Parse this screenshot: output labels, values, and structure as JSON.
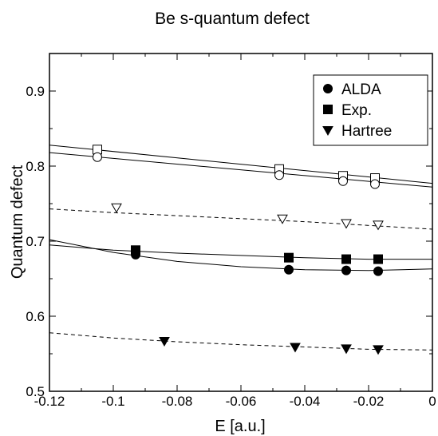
{
  "chart_data": {
    "type": "scatter",
    "title": "Be s-quantum defect",
    "xlabel": "E [a.u.]",
    "ylabel": "Quantum defect",
    "xlim": [
      -0.12,
      0
    ],
    "ylim": [
      0.5,
      0.95
    ],
    "x_ticks": [
      -0.12,
      -0.1,
      -0.08,
      -0.06,
      -0.04,
      -0.02,
      0
    ],
    "x_tick_labels": [
      "-0.12",
      "-0.1",
      "-0.08",
      "-0.06",
      "-0.04",
      "-0.02",
      "0"
    ],
    "y_ticks": [
      0.5,
      0.6,
      0.7,
      0.8,
      0.9
    ],
    "y_tick_labels": [
      "0.5",
      "0.6",
      "0.7",
      "0.8",
      "0.9"
    ],
    "grid": false,
    "legend_position": "top-right",
    "legend": [
      {
        "label": "ALDA",
        "marker": "circle"
      },
      {
        "label": "Exp.",
        "marker": "square"
      },
      {
        "label": "Hartree",
        "marker": "triangle-down"
      }
    ],
    "series": [
      {
        "marker": "circle",
        "filled": true,
        "x": [
          -0.093,
          -0.045,
          -0.027,
          -0.017
        ],
        "y": [
          0.682,
          0.662,
          0.661,
          0.66
        ]
      },
      {
        "marker": "square",
        "filled": true,
        "x": [
          -0.093,
          -0.045,
          -0.027,
          -0.017
        ],
        "y": [
          0.688,
          0.678,
          0.676,
          0.676
        ]
      },
      {
        "marker": "triangle-down",
        "filled": true,
        "x": [
          -0.084,
          -0.043,
          -0.027,
          -0.017
        ],
        "y": [
          0.567,
          0.559,
          0.557,
          0.556
        ]
      },
      {
        "marker": "square",
        "filled": false,
        "x": [
          -0.105,
          -0.048,
          -0.028,
          -0.018
        ],
        "y": [
          0.822,
          0.796,
          0.787,
          0.784
        ]
      },
      {
        "marker": "circle",
        "filled": false,
        "x": [
          -0.105,
          -0.048,
          -0.028,
          -0.018
        ],
        "y": [
          0.812,
          0.788,
          0.78,
          0.776
        ]
      },
      {
        "marker": "triangle-down",
        "filled": false,
        "x": [
          -0.099,
          -0.047,
          -0.027,
          -0.017
        ],
        "y": [
          0.745,
          0.73,
          0.724,
          0.722
        ]
      }
    ],
    "fit_lines": [
      {
        "style": "solid",
        "points": [
          [
            -0.12,
            0.828
          ],
          [
            0,
            0.777
          ]
        ]
      },
      {
        "style": "solid",
        "points": [
          [
            -0.12,
            0.818
          ],
          [
            0,
            0.772
          ]
        ]
      },
      {
        "style": "dashed",
        "points": [
          [
            -0.12,
            0.743
          ],
          [
            -0.1,
            0.738
          ],
          [
            -0.06,
            0.73
          ],
          [
            -0.04,
            0.726
          ],
          [
            0,
            0.716
          ]
        ]
      },
      {
        "style": "solid",
        "points": [
          [
            -0.12,
            0.695
          ],
          [
            -0.1,
            0.688
          ],
          [
            -0.08,
            0.684
          ],
          [
            -0.06,
            0.681
          ],
          [
            -0.04,
            0.678
          ],
          [
            -0.02,
            0.676
          ],
          [
            0,
            0.676
          ]
        ]
      },
      {
        "style": "solid",
        "points": [
          [
            -0.12,
            0.702
          ],
          [
            -0.1,
            0.685
          ],
          [
            -0.08,
            0.673
          ],
          [
            -0.06,
            0.666
          ],
          [
            -0.04,
            0.662
          ],
          [
            -0.02,
            0.661
          ],
          [
            0,
            0.663
          ]
        ]
      },
      {
        "style": "dashed",
        "points": [
          [
            -0.12,
            0.578
          ],
          [
            -0.1,
            0.571
          ],
          [
            -0.08,
            0.566
          ],
          [
            -0.06,
            0.562
          ],
          [
            -0.04,
            0.559
          ],
          [
            -0.02,
            0.556
          ],
          [
            0,
            0.555
          ]
        ]
      }
    ]
  }
}
